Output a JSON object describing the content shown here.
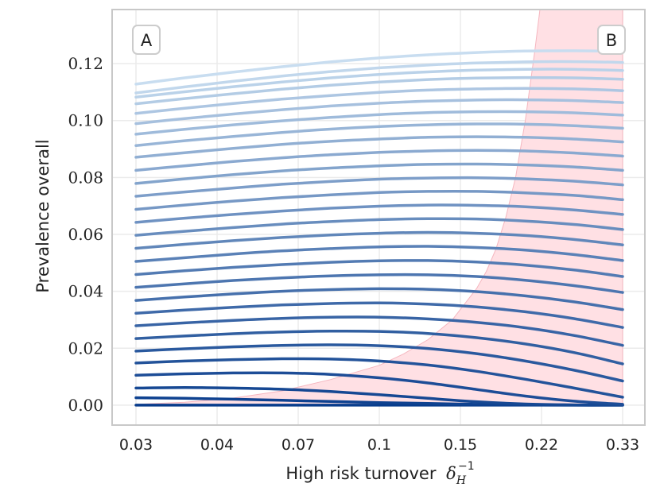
{
  "chart_data": {
    "type": "line",
    "xlabel": "High risk turnover",
    "xlabel_symbol": "δ",
    "xlabel_subscript": "H",
    "xlabel_superscript": "−1",
    "ylabel": "Prevalence overall",
    "xtick_labels": [
      "0.03",
      "0.04",
      "0.07",
      "0.1",
      "0.15",
      "0.22",
      "0.33"
    ],
    "ytick_values": [
      0.0,
      0.02,
      0.04,
      0.06,
      0.08,
      0.1,
      0.12
    ],
    "ytick_labels": [
      "0.00",
      "0.02",
      "0.04",
      "0.06",
      "0.08",
      "0.10",
      "0.12"
    ],
    "ylim": [
      -0.007,
      0.139
    ],
    "grid": true,
    "annotations": [
      "A",
      "B"
    ],
    "shaded_region": {
      "color": "#ffe0e4",
      "description": "region right of the boundary curve",
      "boundary": [
        {
          "x": 0.0,
          "y": 0.0003
        },
        {
          "x": 0.1,
          "y": 0.001
        },
        {
          "x": 0.2,
          "y": 0.0025
        },
        {
          "x": 0.3,
          "y": 0.005
        },
        {
          "x": 0.4,
          "y": 0.009
        },
        {
          "x": 0.5,
          "y": 0.014
        },
        {
          "x": 0.55,
          "y": 0.018
        },
        {
          "x": 0.6,
          "y": 0.023
        },
        {
          "x": 0.65,
          "y": 0.03
        },
        {
          "x": 0.7,
          "y": 0.041
        },
        {
          "x": 0.72,
          "y": 0.047
        },
        {
          "x": 0.74,
          "y": 0.055
        },
        {
          "x": 0.76,
          "y": 0.066
        },
        {
          "x": 0.78,
          "y": 0.08
        },
        {
          "x": 0.8,
          "y": 0.1
        },
        {
          "x": 0.82,
          "y": 0.125
        },
        {
          "x": 0.83,
          "y": 0.139
        }
      ]
    },
    "x_positions": [
      0,
      0.1,
      0.2,
      0.3,
      0.4,
      0.5,
      0.6,
      0.7,
      0.8,
      0.9,
      1
    ],
    "series": [
      {
        "name": "s1",
        "values": [
          0,
          0,
          0,
          0,
          0,
          0,
          0,
          0,
          0,
          0,
          0
        ]
      },
      {
        "name": "s2",
        "values": [
          0.0026,
          0.0024,
          0.0021,
          0.0017,
          0.0013,
          0.0009,
          0.0006,
          0.0003,
          0.0001,
          0.0,
          0.0
        ]
      },
      {
        "name": "s3",
        "values": [
          0.006,
          0.0062,
          0.006,
          0.0056,
          0.0048,
          0.0037,
          0.0024,
          0.0012,
          0.0004,
          0.0001,
          0.0
        ]
      },
      {
        "name": "s4",
        "values": [
          0.0105,
          0.011,
          0.0113,
          0.0113,
          0.0108,
          0.0096,
          0.0078,
          0.0055,
          0.0032,
          0.0014,
          0.0003
        ]
      },
      {
        "name": "s5",
        "values": [
          0.0148,
          0.0155,
          0.016,
          0.0163,
          0.0162,
          0.0155,
          0.0141,
          0.0119,
          0.0091,
          0.006,
          0.0028
        ]
      },
      {
        "name": "s6",
        "values": [
          0.019,
          0.0198,
          0.0205,
          0.021,
          0.0212,
          0.0209,
          0.0199,
          0.0181,
          0.0155,
          0.0123,
          0.0085
        ]
      },
      {
        "name": "s7",
        "values": [
          0.0234,
          0.0243,
          0.0251,
          0.0257,
          0.026,
          0.0259,
          0.0252,
          0.0237,
          0.0215,
          0.0185,
          0.0145
        ]
      },
      {
        "name": "s8",
        "values": [
          0.0279,
          0.0289,
          0.0298,
          0.0305,
          0.0309,
          0.0309,
          0.0303,
          0.0291,
          0.0272,
          0.0245,
          0.021
        ]
      },
      {
        "name": "s9",
        "values": [
          0.0323,
          0.0334,
          0.0344,
          0.0352,
          0.0357,
          0.0359,
          0.0355,
          0.0345,
          0.0328,
          0.0304,
          0.0273
        ]
      },
      {
        "name": "s10",
        "values": [
          0.0368,
          0.038,
          0.0391,
          0.04,
          0.0406,
          0.0409,
          0.0407,
          0.0399,
          0.0384,
          0.0363,
          0.0336
        ]
      },
      {
        "name": "s11",
        "values": [
          0.0414,
          0.0426,
          0.0438,
          0.0447,
          0.0454,
          0.0458,
          0.0458,
          0.0452,
          0.0439,
          0.042,
          0.0396
        ]
      },
      {
        "name": "s12",
        "values": [
          0.0459,
          0.0472,
          0.0484,
          0.0494,
          0.0502,
          0.0507,
          0.0508,
          0.0503,
          0.0492,
          0.0475,
          0.0452
        ]
      },
      {
        "name": "s13",
        "values": [
          0.0505,
          0.0518,
          0.0531,
          0.0542,
          0.055,
          0.0556,
          0.0558,
          0.0554,
          0.0545,
          0.0529,
          0.0508
        ]
      },
      {
        "name": "s14",
        "values": [
          0.0551,
          0.0565,
          0.0578,
          0.0589,
          0.0598,
          0.0604,
          0.0607,
          0.0604,
          0.0596,
          0.0582,
          0.0563
        ]
      },
      {
        "name": "s15",
        "values": [
          0.0597,
          0.0611,
          0.0624,
          0.0636,
          0.0645,
          0.0652,
          0.0655,
          0.0654,
          0.0647,
          0.0635,
          0.0617
        ]
      },
      {
        "name": "s16",
        "values": [
          0.0642,
          0.0657,
          0.067,
          0.0682,
          0.0692,
          0.0699,
          0.0703,
          0.0702,
          0.0697,
          0.0686,
          0.067
        ]
      },
      {
        "name": "s17",
        "values": [
          0.0688,
          0.0703,
          0.0717,
          0.0729,
          0.0739,
          0.0747,
          0.0751,
          0.0751,
          0.0746,
          0.0737,
          0.0722
        ]
      },
      {
        "name": "s18",
        "values": [
          0.0734,
          0.0749,
          0.0763,
          0.0776,
          0.0786,
          0.0794,
          0.0798,
          0.0799,
          0.0795,
          0.0787,
          0.0774
        ]
      },
      {
        "name": "s19",
        "values": [
          0.0779,
          0.0795,
          0.081,
          0.0823,
          0.0833,
          0.0841,
          0.0846,
          0.0847,
          0.0844,
          0.0837,
          0.0825
        ]
      },
      {
        "name": "s20",
        "values": [
          0.0825,
          0.0841,
          0.0856,
          0.0869,
          0.088,
          0.0888,
          0.0893,
          0.0895,
          0.0893,
          0.0886,
          0.0875
        ]
      },
      {
        "name": "s21",
        "values": [
          0.0871,
          0.0887,
          0.0902,
          0.0916,
          0.0927,
          0.0935,
          0.0941,
          0.0943,
          0.0941,
          0.0935,
          0.0925
        ]
      },
      {
        "name": "s22",
        "values": [
          0.0912,
          0.0929,
          0.0944,
          0.0958,
          0.097,
          0.0979,
          0.0985,
          0.0988,
          0.0987,
          0.0982,
          0.0973
        ]
      },
      {
        "name": "s23",
        "values": [
          0.0952,
          0.0969,
          0.0985,
          0.0999,
          0.1011,
          0.1021,
          0.1028,
          0.1031,
          0.1031,
          0.1027,
          0.1019
        ]
      },
      {
        "name": "s24",
        "values": [
          0.0989,
          0.1007,
          0.1023,
          0.1038,
          0.1051,
          0.1061,
          0.1068,
          0.1072,
          0.1073,
          0.107,
          0.1063
        ]
      },
      {
        "name": "s25",
        "values": [
          0.1025,
          0.1043,
          0.106,
          0.1075,
          0.1088,
          0.1099,
          0.1107,
          0.1111,
          0.1113,
          0.1111,
          0.1105
        ]
      },
      {
        "name": "s26",
        "values": [
          0.1059,
          0.1077,
          0.1094,
          0.111,
          0.1124,
          0.1135,
          0.1144,
          0.1149,
          0.1151,
          0.115,
          0.1145
        ]
      },
      {
        "name": "s27",
        "values": [
          0.1082,
          0.1101,
          0.1119,
          0.1135,
          0.115,
          0.1162,
          0.1171,
          0.1177,
          0.118,
          0.118,
          0.1176
        ]
      },
      {
        "name": "s28",
        "values": [
          0.1097,
          0.1118,
          0.1138,
          0.1156,
          0.1172,
          0.1185,
          0.1195,
          0.1202,
          0.1206,
          0.1207,
          0.1204
        ]
      },
      {
        "name": "s29",
        "values": [
          0.1128,
          0.115,
          0.117,
          0.1189,
          0.1206,
          0.122,
          0.1231,
          0.1239,
          0.1244,
          0.1245,
          0.1243
        ]
      }
    ]
  }
}
